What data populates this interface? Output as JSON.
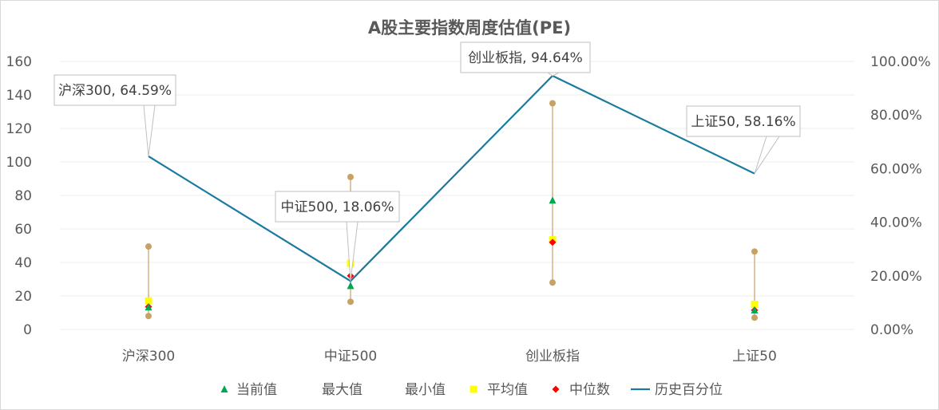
{
  "chart_data": {
    "type": "line",
    "title": "A股主要指数周度估值(PE)",
    "categories": [
      "沪深300",
      "中证500",
      "创业板指",
      "上证50"
    ],
    "left_axis": {
      "ticks": [
        "0",
        "20",
        "40",
        "60",
        "80",
        "100",
        "120",
        "140",
        "160"
      ],
      "range": [
        0,
        160
      ]
    },
    "right_axis": {
      "ticks": [
        "0.00%",
        "20.00%",
        "40.00%",
        "60.00%",
        "80.00%",
        "100.00%"
      ],
      "range": [
        0,
        100
      ]
    },
    "grid": true,
    "legend_position": "bottom",
    "series": [
      {
        "name": "当前值",
        "axis": "left",
        "marker": "triangle",
        "color": "#00a651",
        "values": [
          13.2,
          26.0,
          77.0,
          11.5
        ]
      },
      {
        "name": "最大值",
        "axis": "left",
        "marker": "circle",
        "color": "#c8a165",
        "values": [
          49.5,
          91.0,
          135.0,
          46.5
        ]
      },
      {
        "name": "最小值",
        "axis": "left",
        "marker": "circle",
        "color": "#c8a165",
        "values": [
          8.0,
          16.5,
          28.0,
          7.0
        ]
      },
      {
        "name": "平均值",
        "axis": "left",
        "marker": "square",
        "color": "#ffff00",
        "values": [
          17.0,
          39.5,
          53.5,
          15.0
        ]
      },
      {
        "name": "中位数",
        "axis": "left",
        "marker": "diamond",
        "color": "#ff0000",
        "values": [
          13.5,
          32.0,
          52.0,
          11.5
        ]
      },
      {
        "name": "历史百分位",
        "axis": "right",
        "marker": "line",
        "color": "#1a7aa0",
        "values": [
          64.59,
          18.06,
          94.64,
          58.16
        ]
      }
    ],
    "annotations": [
      "沪深300, 64.59%",
      "中证500, 18.06%",
      "创业板指, 94.64%",
      "上证50, 58.16%"
    ]
  }
}
